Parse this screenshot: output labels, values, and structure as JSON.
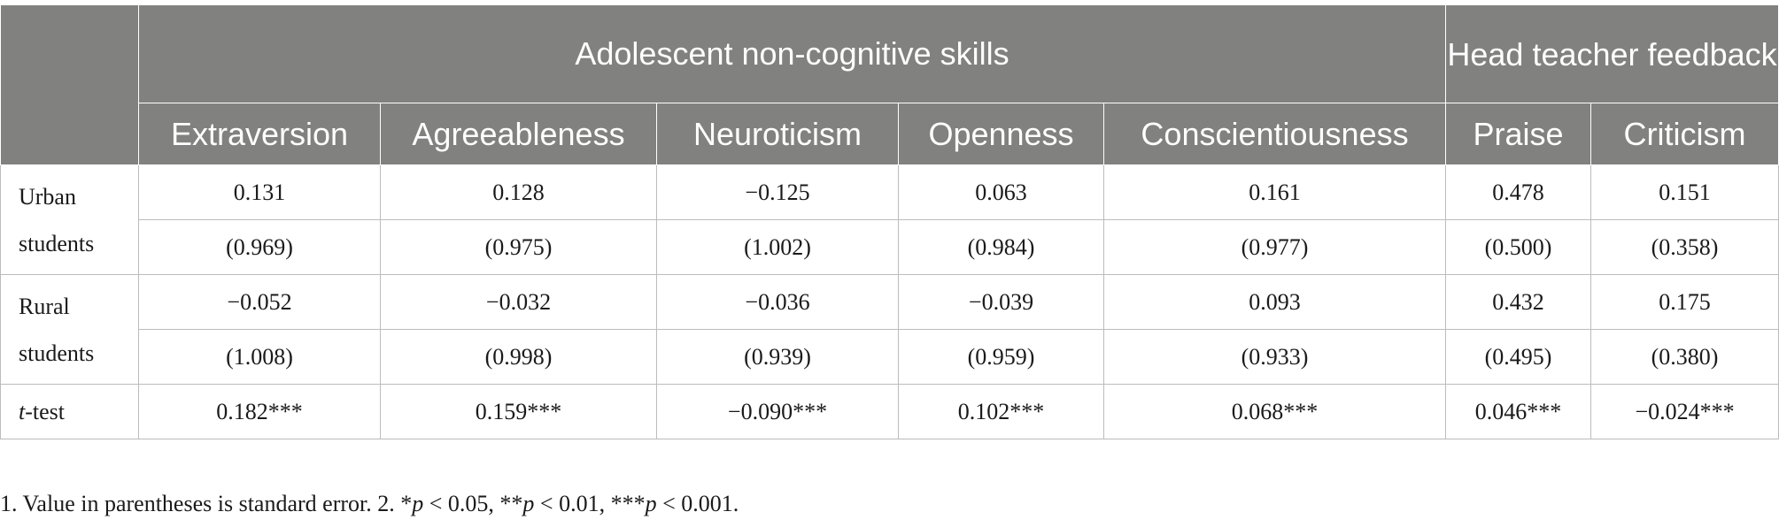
{
  "table": {
    "group_headers": {
      "skills": "Adolescent non-cognitive skills",
      "feedback": "Head teacher feedback"
    },
    "columns": [
      "Extraversion",
      "Agreeableness",
      "Neuroticism",
      "Openness",
      "Conscientiousness",
      "Praise",
      "Criticism"
    ],
    "rows": [
      {
        "label": "Urban students",
        "means": [
          "0.131",
          "0.128",
          "−0.125",
          "0.063",
          "0.161",
          "0.478",
          "0.151"
        ],
        "errors": [
          "(0.969)",
          "(0.975)",
          "(1.002)",
          "(0.984)",
          "(0.977)",
          "(0.500)",
          "(0.358)"
        ]
      },
      {
        "label": "Rural students",
        "means": [
          "−0.052",
          "−0.032",
          "−0.036",
          "−0.039",
          "0.093",
          "0.432",
          "0.175"
        ],
        "errors": [
          "(1.008)",
          "(0.998)",
          "(0.939)",
          "(0.959)",
          "(0.933)",
          "(0.495)",
          "(0.380)"
        ]
      }
    ],
    "ttest": {
      "label_italic": "t",
      "label_rest": "-test",
      "values": [
        "0.182***",
        "0.159***",
        "−0.090***",
        "0.102***",
        "0.068***",
        "0.046***",
        "−0.024***"
      ]
    }
  },
  "footnote": {
    "part1": "1. Value in parentheses is standard error. 2. *",
    "p1": "p",
    "part2": " < 0.05, **",
    "p2": "p",
    "part3": " < 0.01, ***",
    "p3": "p",
    "part4": " < 0.001."
  }
}
